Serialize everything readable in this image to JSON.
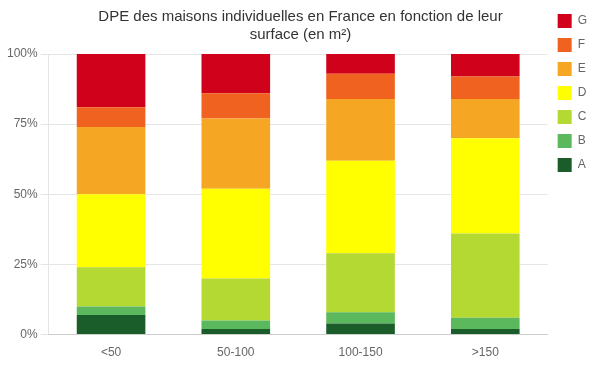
{
  "chart_data": {
    "type": "bar",
    "stacked": true,
    "title": "DPE des maisons individuelles en France en fonction de leur\nsurface (en m²)",
    "categories": [
      "<50",
      "50-100",
      "100-150",
      ">150"
    ],
    "series": [
      {
        "name": "A",
        "color": "#1a5c2a",
        "values": [
          0.07,
          0.02,
          0.04,
          0.02
        ]
      },
      {
        "name": "B",
        "color": "#5cb85c",
        "values": [
          0.03,
          0.03,
          0.04,
          0.04
        ]
      },
      {
        "name": "C",
        "color": "#b5d933",
        "values": [
          0.14,
          0.15,
          0.21,
          0.3
        ]
      },
      {
        "name": "D",
        "color": "#ffff00",
        "values": [
          0.26,
          0.32,
          0.33,
          0.34
        ]
      },
      {
        "name": "E",
        "color": "#f5a623",
        "values": [
          0.24,
          0.25,
          0.22,
          0.14
        ]
      },
      {
        "name": "F",
        "color": "#f0621f",
        "values": [
          0.07,
          0.09,
          0.09,
          0.08
        ]
      },
      {
        "name": "G",
        "color": "#d0021b",
        "values": [
          0.19,
          0.14,
          0.07,
          0.08
        ]
      }
    ],
    "ylim": [
      0,
      1.0
    ],
    "yticks": [
      {
        "value": 0,
        "label": "0%"
      },
      {
        "value": 0.25,
        "label": "25%"
      },
      {
        "value": 0.5,
        "label": "50%"
      },
      {
        "value": 0.75,
        "label": "75%"
      },
      {
        "value": 1.0,
        "label": "100%"
      }
    ],
    "grid": true,
    "legend": "right"
  }
}
